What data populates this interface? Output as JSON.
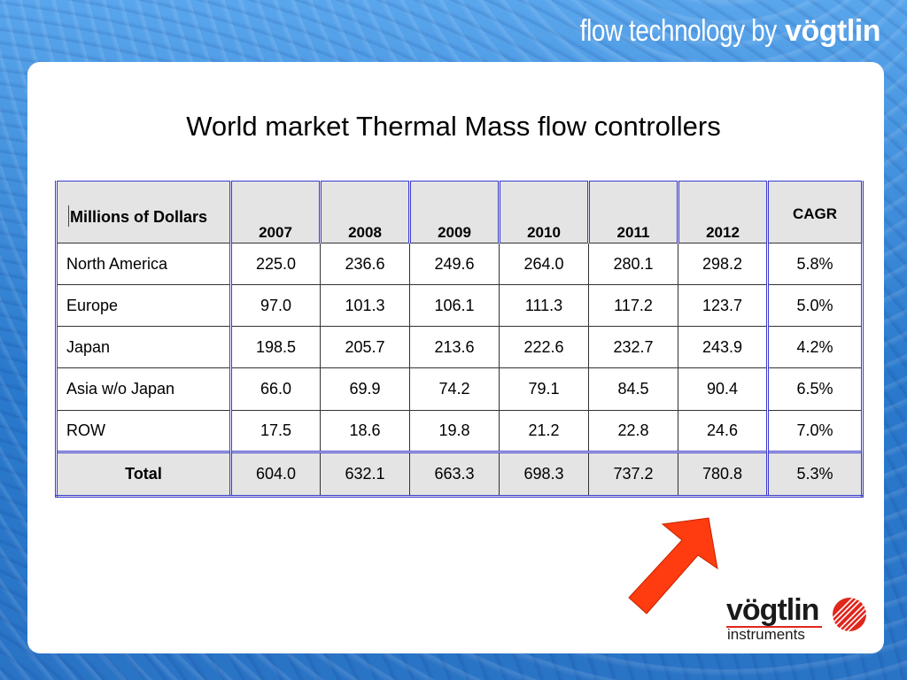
{
  "header": {
    "tagline_prefix": "flow technology by",
    "tagline_brand": "vögtlin"
  },
  "slide": {
    "title": "World market Thermal Mass flow controllers"
  },
  "table": {
    "corner_label": "Millions of Dollars",
    "years": [
      "2007",
      "2008",
      "2009",
      "2010",
      "2011",
      "2012"
    ],
    "cagr_label": "CAGR",
    "rows": [
      {
        "region": "North America",
        "values": [
          "225.0",
          "236.6",
          "249.6",
          "264.0",
          "280.1",
          "298.2"
        ],
        "cagr": "5.8%"
      },
      {
        "region": "Europe",
        "values": [
          "97.0",
          "101.3",
          "106.1",
          "111.3",
          "117.2",
          "123.7"
        ],
        "cagr": "5.0%"
      },
      {
        "region": "Japan",
        "values": [
          "198.5",
          "205.7",
          "213.6",
          "222.6",
          "232.7",
          "243.9"
        ],
        "cagr": "4.2%"
      },
      {
        "region": "Asia w/o Japan",
        "values": [
          "66.0",
          "69.9",
          "74.2",
          "79.1",
          "84.5",
          "90.4"
        ],
        "cagr": "6.5%"
      },
      {
        "region": "ROW",
        "values": [
          "17.5",
          "18.6",
          "19.8",
          "21.2",
          "22.8",
          "24.6"
        ],
        "cagr": "7.0%"
      }
    ],
    "total": {
      "region": "Total",
      "values": [
        "604.0",
        "632.1",
        "663.3",
        "698.3",
        "737.2",
        "780.8"
      ],
      "cagr": "5.3%"
    }
  },
  "logo": {
    "brand": "vögtlin",
    "sub": "instruments"
  },
  "icons": {
    "arrow": "red-arrow-icon",
    "logo_ball": "red-striped-ball-icon"
  },
  "colors": {
    "background": "#2f7fcf",
    "arrow": "#ff3b10",
    "logo_red": "#e1261c",
    "header_cell": "#e4e4e4",
    "table_border_accent": "#3b3bd0"
  }
}
